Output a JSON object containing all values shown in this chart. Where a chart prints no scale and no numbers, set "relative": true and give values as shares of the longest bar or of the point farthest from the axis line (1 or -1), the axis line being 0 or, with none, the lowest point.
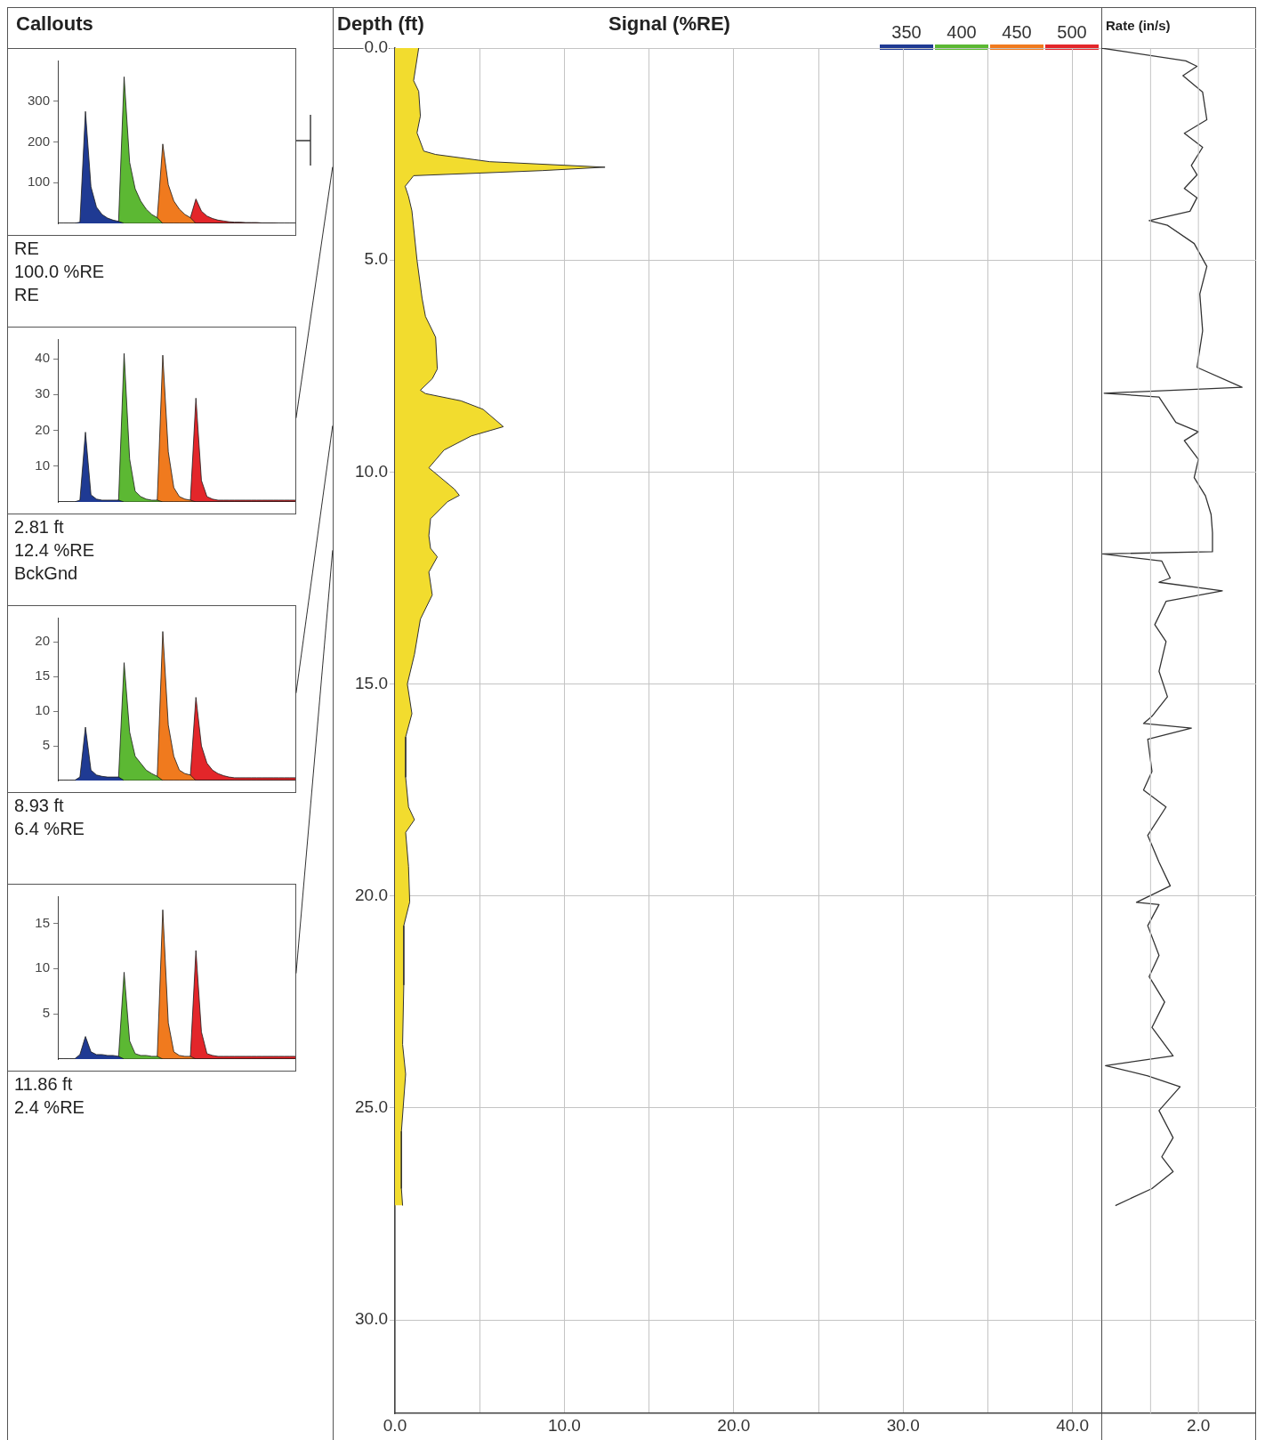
{
  "chart_data": [
    {
      "type": "area",
      "title": "Callouts",
      "legend": "top right",
      "tick_labels": "y",
      "categories": [
        null,
        null,
        null,
        null,
        null,
        null,
        null,
        null,
        null,
        null,
        null,
        null,
        null,
        null,
        null,
        null,
        null,
        null,
        null,
        null,
        null,
        null,
        null,
        null,
        null,
        null,
        null,
        null,
        null,
        null,
        null,
        null,
        null,
        null,
        null,
        null,
        null,
        null,
        null,
        null,
        null,
        null,
        null,
        null
      ],
      "ylim": [
        0,
        400
      ],
      "yticks": [
        100,
        200,
        300
      ],
      "series": [
        {
          "name": "350",
          "color": "#1f3a93",
          "values": [
            0,
            0,
            0,
            0,
            3,
            275,
            90,
            40,
            22,
            13,
            8,
            5,
            0,
            0,
            0,
            0,
            0,
            0,
            0,
            0,
            0,
            0,
            0,
            0,
            0,
            0,
            0,
            0,
            0,
            0,
            0,
            0,
            0,
            0,
            0,
            0,
            0,
            0,
            0,
            0,
            0,
            0,
            0,
            0
          ]
        },
        {
          "name": "400",
          "color": "#5cb833",
          "values": [
            0,
            0,
            0,
            0,
            0,
            0,
            0,
            0,
            0,
            0,
            0,
            5,
            360,
            150,
            85,
            55,
            35,
            22,
            14,
            0,
            0,
            0,
            0,
            0,
            0,
            0,
            0,
            0,
            0,
            0,
            0,
            0,
            0,
            0,
            0,
            0,
            0,
            0,
            0,
            0,
            0,
            0,
            0,
            0
          ]
        },
        {
          "name": "450",
          "color": "#f07a1e",
          "values": [
            0,
            0,
            0,
            0,
            0,
            0,
            0,
            0,
            0,
            0,
            0,
            0,
            0,
            0,
            0,
            0,
            0,
            0,
            14,
            195,
            95,
            55,
            35,
            22,
            14,
            0,
            0,
            0,
            0,
            0,
            0,
            0,
            0,
            0,
            0,
            0,
            0,
            0,
            0,
            0,
            0,
            0,
            0,
            0
          ]
        },
        {
          "name": "500",
          "color": "#e3262a",
          "values": [
            0,
            0,
            0,
            0,
            0,
            0,
            0,
            0,
            0,
            0,
            0,
            0,
            0,
            0,
            0,
            0,
            0,
            0,
            0,
            0,
            0,
            0,
            0,
            0,
            14,
            60,
            30,
            18,
            12,
            8,
            6,
            4,
            3,
            3,
            2,
            2,
            2,
            1,
            1,
            1,
            0,
            0,
            0,
            0
          ]
        }
      ],
      "annotations": [
        "RE",
        "100.0 %RE",
        "RE"
      ]
    },
    {
      "type": "area",
      "tick_labels": "y",
      "categories": [
        null,
        null,
        null,
        null,
        null,
        null,
        null,
        null,
        null,
        null,
        null,
        null,
        null,
        null,
        null,
        null,
        null,
        null,
        null,
        null,
        null,
        null,
        null,
        null,
        null,
        null,
        null,
        null,
        null,
        null,
        null,
        null,
        null,
        null,
        null,
        null,
        null,
        null,
        null,
        null,
        null,
        null,
        null,
        null
      ],
      "ylim": [
        0,
        45.5
      ],
      "yticks": [
        10,
        20,
        30,
        40
      ],
      "series": [
        {
          "color": "#1f3a93",
          "values": [
            0,
            0,
            0,
            0,
            0.5,
            19.5,
            2,
            0.8,
            0.5,
            0.5,
            0.5,
            0.5,
            0,
            0,
            0,
            0,
            0,
            0,
            0,
            0,
            0,
            0,
            0,
            0,
            0,
            0,
            0,
            0,
            0,
            0,
            0,
            0,
            0,
            0,
            0,
            0,
            0,
            0,
            0,
            0,
            0,
            0,
            0,
            0
          ]
        },
        {
          "color": "#5cb833",
          "values": [
            0,
            0,
            0,
            0,
            0,
            0,
            0,
            0,
            0,
            0,
            0,
            0.5,
            41.5,
            12,
            3,
            1.5,
            0.8,
            0.5,
            0.5,
            0,
            0,
            0,
            0,
            0,
            0,
            0,
            0,
            0,
            0,
            0,
            0,
            0,
            0,
            0,
            0,
            0,
            0,
            0,
            0,
            0,
            0,
            0,
            0,
            0
          ]
        },
        {
          "color": "#f07a1e",
          "values": [
            0,
            0,
            0,
            0,
            0,
            0,
            0,
            0,
            0,
            0,
            0,
            0,
            0,
            0,
            0,
            0,
            0,
            0,
            0.5,
            41,
            14,
            4,
            1.5,
            0.8,
            0.5,
            0,
            0,
            0,
            0,
            0,
            0,
            0,
            0,
            0,
            0,
            0,
            0,
            0,
            0,
            0,
            0,
            0,
            0,
            0
          ]
        },
        {
          "color": "#e3262a",
          "values": [
            0,
            0,
            0,
            0,
            0,
            0,
            0,
            0,
            0,
            0,
            0,
            0,
            0,
            0,
            0,
            0,
            0,
            0,
            0,
            0,
            0,
            0,
            0,
            0,
            0.5,
            29,
            6,
            1.5,
            0.8,
            0.5,
            0.5,
            0.5,
            0.5,
            0.5,
            0.5,
            0.5,
            0.5,
            0.5,
            0.5,
            0.5,
            0.5,
            0.5,
            0.5,
            0.5
          ]
        }
      ],
      "annotations": [
        "2.81 ft",
        "12.4 %RE",
        "BckGnd"
      ]
    },
    {
      "type": "area",
      "tick_labels": "y",
      "categories": [
        null,
        null,
        null,
        null,
        null,
        null,
        null,
        null,
        null,
        null,
        null,
        null,
        null,
        null,
        null,
        null,
        null,
        null,
        null,
        null,
        null,
        null,
        null,
        null,
        null,
        null,
        null,
        null,
        null,
        null,
        null,
        null,
        null,
        null,
        null,
        null,
        null,
        null,
        null,
        null,
        null,
        null,
        null,
        null
      ],
      "ylim": [
        0,
        23.5
      ],
      "yticks": [
        5,
        10,
        15,
        20
      ],
      "series": [
        {
          "color": "#1f3a93",
          "values": [
            0,
            0,
            0,
            0,
            0.5,
            7.7,
            1.5,
            0.8,
            0.6,
            0.5,
            0.5,
            0.5,
            0,
            0,
            0,
            0,
            0,
            0,
            0,
            0,
            0,
            0,
            0,
            0,
            0,
            0,
            0,
            0,
            0,
            0,
            0,
            0,
            0,
            0,
            0,
            0,
            0,
            0,
            0,
            0,
            0,
            0,
            0,
            0
          ]
        },
        {
          "color": "#5cb833",
          "values": [
            0,
            0,
            0,
            0,
            0,
            0,
            0,
            0,
            0,
            0,
            0,
            0.5,
            17,
            7,
            3.5,
            2.5,
            1.5,
            1,
            0.6,
            0,
            0,
            0,
            0,
            0,
            0,
            0,
            0,
            0,
            0,
            0,
            0,
            0,
            0,
            0,
            0,
            0,
            0,
            0,
            0,
            0,
            0,
            0,
            0,
            0
          ]
        },
        {
          "color": "#f07a1e",
          "values": [
            0,
            0,
            0,
            0,
            0,
            0,
            0,
            0,
            0,
            0,
            0,
            0,
            0,
            0,
            0,
            0,
            0,
            0,
            0.6,
            21.5,
            8,
            3.5,
            1.5,
            1,
            0.8,
            0,
            0,
            0,
            0,
            0,
            0,
            0,
            0,
            0,
            0,
            0,
            0,
            0,
            0,
            0,
            0,
            0,
            0,
            0
          ]
        },
        {
          "color": "#e3262a",
          "values": [
            0,
            0,
            0,
            0,
            0,
            0,
            0,
            0,
            0,
            0,
            0,
            0,
            0,
            0,
            0,
            0,
            0,
            0,
            0,
            0,
            0,
            0,
            0,
            0,
            0.8,
            12,
            5,
            2.5,
            1.5,
            1,
            0.7,
            0.5,
            0.4,
            0.4,
            0.4,
            0.4,
            0.4,
            0.4,
            0.4,
            0.4,
            0.4,
            0.4,
            0.4,
            0.4
          ]
        }
      ],
      "annotations": [
        "8.93 ft",
        "6.4 %RE"
      ]
    },
    {
      "type": "area",
      "tick_labels": "y",
      "categories": [
        null,
        null,
        null,
        null,
        null,
        null,
        null,
        null,
        null,
        null,
        null,
        null,
        null,
        null,
        null,
        null,
        null,
        null,
        null,
        null,
        null,
        null,
        null,
        null,
        null,
        null,
        null,
        null,
        null,
        null,
        null,
        null,
        null,
        null,
        null,
        null,
        null,
        null,
        null,
        null,
        null,
        null,
        null,
        null
      ],
      "ylim": [
        0,
        18
      ],
      "yticks": [
        5,
        10,
        15
      ],
      "series": [
        {
          "color": "#1f3a93",
          "values": [
            0,
            0,
            0,
            0,
            0.5,
            2.5,
            0.8,
            0.5,
            0.5,
            0.4,
            0.4,
            0.3,
            0,
            0,
            0,
            0,
            0,
            0,
            0,
            0,
            0,
            0,
            0,
            0,
            0,
            0,
            0,
            0,
            0,
            0,
            0,
            0,
            0,
            0,
            0,
            0,
            0,
            0,
            0,
            0,
            0,
            0,
            0,
            0
          ]
        },
        {
          "color": "#5cb833",
          "values": [
            0,
            0,
            0,
            0,
            0,
            0,
            0,
            0,
            0,
            0,
            0,
            0.3,
            9.6,
            2,
            0.6,
            0.4,
            0.4,
            0.3,
            0.3,
            0,
            0,
            0,
            0,
            0,
            0,
            0,
            0,
            0,
            0,
            0,
            0,
            0,
            0,
            0,
            0,
            0,
            0,
            0,
            0,
            0,
            0,
            0,
            0,
            0
          ]
        },
        {
          "color": "#f07a1e",
          "values": [
            0,
            0,
            0,
            0,
            0,
            0,
            0,
            0,
            0,
            0,
            0,
            0,
            0,
            0,
            0,
            0,
            0,
            0,
            0.3,
            16.5,
            4,
            0.8,
            0.4,
            0.3,
            0.3,
            0,
            0,
            0,
            0,
            0,
            0,
            0,
            0,
            0,
            0,
            0,
            0,
            0,
            0,
            0,
            0,
            0,
            0,
            0
          ]
        },
        {
          "color": "#e3262a",
          "values": [
            0,
            0,
            0,
            0,
            0,
            0,
            0,
            0,
            0,
            0,
            0,
            0,
            0,
            0,
            0,
            0,
            0,
            0,
            0,
            0,
            0,
            0,
            0,
            0,
            0.3,
            12,
            3,
            0.6,
            0.4,
            0.3,
            0.3,
            0.3,
            0.3,
            0.3,
            0.3,
            0.3,
            0.3,
            0.3,
            0.3,
            0.3,
            0.3,
            0.3,
            0.3,
            0.3
          ]
        }
      ],
      "annotations": [
        "11.86 ft",
        "2.4 %RE"
      ]
    },
    {
      "type": "area",
      "orientation": "horizontal",
      "xlabel": "Signal (%RE)",
      "ylabel": "Depth (ft)",
      "grid": true,
      "color": "#f2dc2e",
      "x": [
        0,
        0.77,
        1.02,
        1.6,
        2.0,
        2.43,
        2.51,
        2.68,
        2.81,
        2.89,
        3.01,
        3.26,
        3.5,
        3.84,
        5.0,
        5.9,
        6.33,
        6.82,
        7.57,
        7.8,
        8.07,
        8.15,
        8.32,
        8.52,
        8.93,
        9.15,
        9.48,
        9.9,
        10.4,
        10.55,
        10.7,
        11.1,
        11.5,
        11.8,
        12.0,
        12.36,
        12.9,
        13.47,
        14.3,
        15.0,
        15.7,
        16.25,
        17.2,
        17.9,
        18.2,
        18.5,
        19.3,
        20.14,
        20.7,
        22.1,
        23.5,
        24.2,
        25.55,
        26.9,
        27.3
      ],
      "values": [
        1.4,
        1.1,
        1.4,
        1.5,
        1.3,
        1.7,
        2.4,
        5.6,
        12.4,
        8.7,
        1.1,
        0.6,
        0.8,
        1.0,
        1.3,
        1.6,
        1.8,
        2.4,
        2.5,
        2.2,
        1.5,
        1.8,
        3.9,
        5.2,
        6.4,
        4.5,
        2.9,
        2.0,
        3.5,
        3.8,
        3.1,
        2.1,
        2.0,
        2.1,
        2.5,
        2.0,
        2.2,
        1.5,
        1.15,
        0.73,
        1.0,
        0.63,
        0.63,
        0.8,
        1.15,
        0.63,
        0.8,
        0.87,
        0.52,
        0.52,
        0.45,
        0.63,
        0.38,
        0.38,
        0.45
      ],
      "xlim": [
        0,
        41.7
      ],
      "xticks": [
        {
          "value": 0,
          "label": "0.0"
        },
        {
          "value": 5,
          "label": null
        },
        {
          "value": 10,
          "label": "10.0"
        },
        {
          "value": 15,
          "label": null
        },
        {
          "value": 20,
          "label": "20.0"
        },
        {
          "value": 25,
          "label": null
        },
        {
          "value": 30,
          "label": "30.0"
        },
        {
          "value": 35,
          "label": null
        },
        {
          "value": 40,
          "label": "40.0"
        }
      ],
      "ylim": [
        32.2,
        0
      ],
      "yticks": [
        {
          "value": 0,
          "label": "0.0"
        },
        {
          "value": 5,
          "label": "5.0"
        },
        {
          "value": 10,
          "label": "10.0"
        },
        {
          "value": 15,
          "label": "15.0"
        },
        {
          "value": 20,
          "label": "20.0"
        },
        {
          "value": 25,
          "label": "25.0"
        },
        {
          "value": 30,
          "label": "30.0"
        }
      ]
    },
    {
      "type": "line",
      "orientation": "horizontal",
      "relative": true,
      "xlabel": "Rate (in/s)",
      "grid": "y",
      "tick_labels": false,
      "color": "#333333",
      "x": [
        0,
        0.3,
        0.43,
        0.65,
        1.04,
        1.69,
        2.01,
        2.34,
        2.77,
        2.99,
        3.31,
        3.53,
        3.85,
        4.07,
        4.18,
        4.61,
        5.15,
        5.8,
        6.67,
        7.53,
        8.0,
        8.14,
        8.23,
        8.83,
        9.05,
        9.26,
        9.7,
        10.13,
        10.56,
        11.0,
        11.43,
        11.88,
        11.93,
        12.1,
        12.5,
        12.6,
        12.8,
        13.05,
        13.6,
        14.0,
        14.7,
        15.3,
        15.76,
        15.93,
        16.04,
        16.3,
        17.06,
        17.5,
        17.9,
        18.57,
        19.2,
        19.76,
        20.15,
        20.2,
        20.7,
        21.4,
        21.9,
        22.5,
        23.1,
        23.77,
        24.0,
        24.24,
        24.5,
        25.06,
        25.7,
        26.15,
        26.5,
        26.9,
        27.3
      ],
      "values": [
        0,
        0.6,
        0.68,
        0.58,
        0.72,
        0.75,
        0.59,
        0.72,
        0.64,
        0.68,
        0.59,
        0.68,
        0.63,
        0.34,
        0.47,
        0.66,
        0.75,
        0.7,
        0.72,
        0.68,
        1,
        0.02,
        0.41,
        0.53,
        0.69,
        0.59,
        0.69,
        0.66,
        0.74,
        0.78,
        0.79,
        0.79,
        0.01,
        0.43,
        0.49,
        0.41,
        0.86,
        0.46,
        0.38,
        0.46,
        0.41,
        0.47,
        0.36,
        0.3,
        0.64,
        0.33,
        0.36,
        0.3,
        0.46,
        0.33,
        0.41,
        0.49,
        0.25,
        0.41,
        0.33,
        0.41,
        0.34,
        0.45,
        0.36,
        0.51,
        0.03,
        0.33,
        0.56,
        0.41,
        0.51,
        0.43,
        0.51,
        0.36,
        0.1
      ],
      "ylim": [
        32.2,
        0
      ],
      "yticks": [
        {
          "value": 0,
          "label": null
        },
        {
          "value": 5,
          "label": null
        },
        {
          "value": 10,
          "label": null
        },
        {
          "value": 15,
          "label": null
        },
        {
          "value": 20,
          "label": null
        },
        {
          "value": 25,
          "label": null
        },
        {
          "value": 30,
          "label": null
        }
      ],
      "ref_lines": [
        {
          "axis": "x",
          "value": 0.35
        },
        {
          "axis": "x",
          "value": 0.69
        }
      ],
      "annotations": [
        "2.0"
      ]
    }
  ]
}
